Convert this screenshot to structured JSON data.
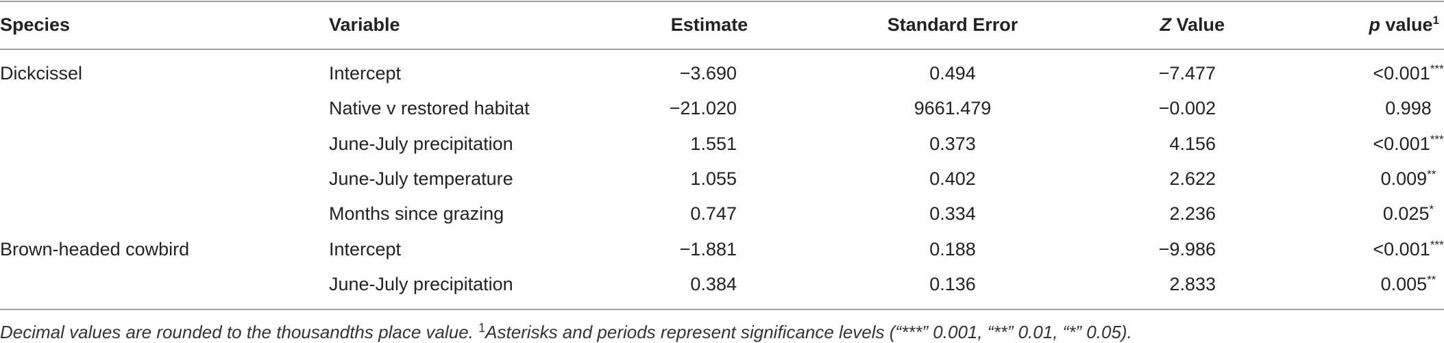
{
  "table": {
    "header": [
      {
        "text": "Species"
      },
      {
        "text": "Variable"
      },
      {
        "text": "Estimate"
      },
      {
        "text": "Standard Error"
      },
      {
        "italic": "Z",
        "text": " Value"
      },
      {
        "italic": "p",
        "text": " value",
        "sup": "1"
      }
    ],
    "groups": [
      {
        "species": "Dickcissel",
        "rows": [
          [
            "Intercept",
            "−3.690",
            "0.494",
            "−7.477",
            {
              "text": "<0.001",
              "sup": "***"
            }
          ],
          [
            "Native v restored habitat",
            "−21.020",
            "9661.479",
            "−0.002",
            {
              "text": "0.998"
            }
          ],
          [
            "June-July precipitation",
            "1.551",
            "0.373",
            "4.156",
            {
              "text": "<0.001",
              "sup": "***"
            }
          ],
          [
            "June-July temperature",
            "1.055",
            "0.402",
            "2.622",
            {
              "text": "0.009",
              "sup": "**"
            }
          ],
          [
            "Months since grazing",
            "0.747",
            "0.334",
            "2.236",
            {
              "text": "0.025",
              "sup": "*"
            }
          ]
        ]
      },
      {
        "species": "Brown-headed cowbird",
        "rows": [
          [
            "Intercept",
            "−1.881",
            "0.188",
            "−9.986",
            {
              "text": "<0.001",
              "sup": "***"
            }
          ],
          [
            "June-July precipitation",
            "0.384",
            "0.136",
            "2.833",
            {
              "text": "0.005",
              "sup": "**"
            }
          ]
        ]
      }
    ],
    "footnote": {
      "text": "Decimal values are rounded to the thousandths place value. ",
      "sup": "1",
      "text2": "Asterisks and periods represent significance levels (“***” 0.001, “**” 0.01, “*” 0.05)."
    }
  }
}
